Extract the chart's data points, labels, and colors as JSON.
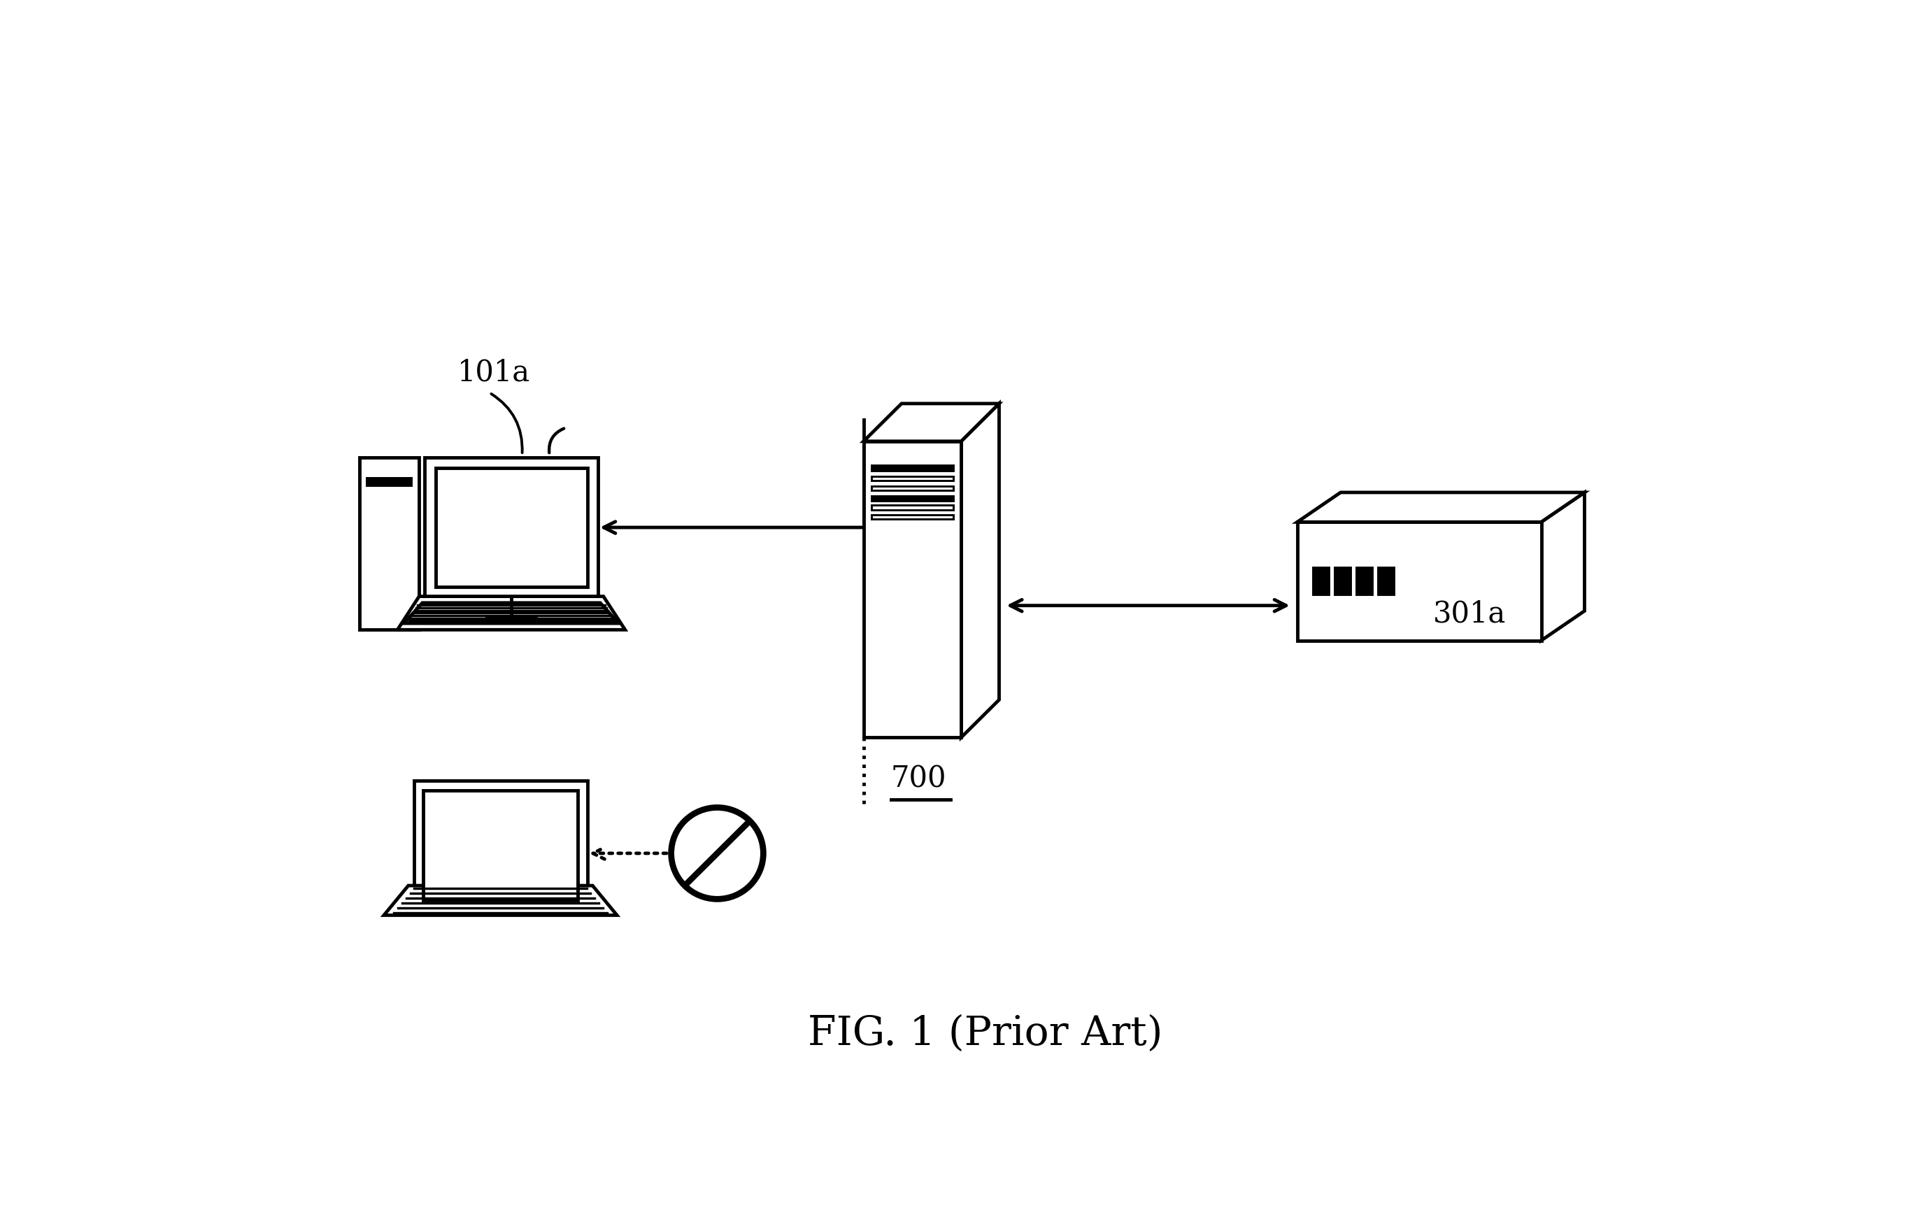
{
  "fig_width": 27.48,
  "fig_height": 17.47,
  "bg_color": "#ffffff",
  "title": "FIG. 1 (Prior Art)",
  "title_fontsize": 42,
  "label_101a": "101a",
  "label_700": "700",
  "label_301a": "301a",
  "lc": "#000000",
  "lw": 3.5
}
